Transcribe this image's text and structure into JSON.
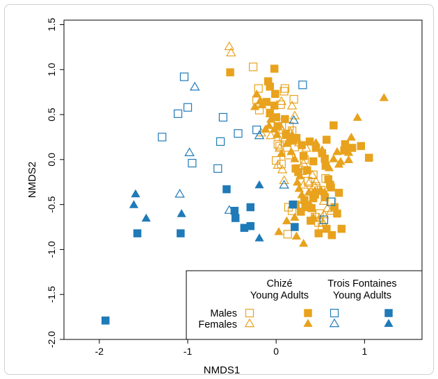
{
  "chart_data": {
    "type": "scatter",
    "xlabel": "NMDS1",
    "ylabel": "NMDS2",
    "xlim": [
      -2.4,
      1.65
    ],
    "ylim": [
      -2.0,
      1.55
    ],
    "x_ticks": [
      "-2",
      "-1",
      "0",
      "1"
    ],
    "x_tick_values": [
      -2,
      -1,
      0,
      1
    ],
    "y_ticks": [
      "-2.0",
      "-1.5",
      "-1.0",
      "-0.5",
      "0.0",
      "0.5",
      "1.0",
      "1.5"
    ],
    "y_tick_values": [
      -2.0,
      -1.5,
      -1.0,
      -0.5,
      0.0,
      0.5,
      1.0,
      1.5
    ],
    "grid": false,
    "legend_placement": "bottom-right",
    "colors": {
      "chize": "#e8a21d",
      "trois_fontaines": "#1f7ab8"
    },
    "legend": {
      "col1_header": "Chizé",
      "col2_header": "Trois Fontaines",
      "subheader": "Young Adults",
      "row_males": "Males",
      "row_females": "Females"
    },
    "series": [
      {
        "group": "Chizé",
        "age": "Young",
        "sex": "Males",
        "color": "#e8a21d",
        "marker": "square-open",
        "points": [
          [
            -0.26,
            1.03
          ],
          [
            0.1,
            0.79
          ],
          [
            0.09,
            0.76
          ],
          [
            -0.2,
            0.79
          ],
          [
            -0.22,
            0.66
          ],
          [
            -0.19,
            0.55
          ],
          [
            0.2,
            0.67
          ],
          [
            0.05,
            0.61
          ],
          [
            0.02,
            0.41
          ],
          [
            0.08,
            0.25
          ],
          [
            0.1,
            0.19
          ],
          [
            0.04,
            0.15
          ],
          [
            0.02,
            0.17
          ],
          [
            0.0,
            -0.01
          ],
          [
            0.06,
            -0.05
          ],
          [
            0.14,
            0.05
          ],
          [
            0.25,
            -0.1
          ],
          [
            0.36,
            -0.24
          ],
          [
            0.45,
            -0.3
          ],
          [
            0.51,
            -0.34
          ],
          [
            0.63,
            -0.47
          ],
          [
            0.49,
            -0.6
          ],
          [
            0.54,
            -0.67
          ],
          [
            0.52,
            -0.75
          ],
          [
            0.14,
            -0.53
          ],
          [
            0.18,
            -0.57
          ],
          [
            0.44,
            -0.64
          ],
          [
            0.48,
            -0.7
          ],
          [
            0.13,
            -0.83
          ],
          [
            0.56,
            -0.21
          ],
          [
            0.42,
            -0.17
          ],
          [
            0.32,
            0.0
          ],
          [
            0.15,
            0.37
          ],
          [
            0.18,
            0.32
          ],
          [
            0.21,
            0.14
          ]
        ]
      },
      {
        "group": "Chizé",
        "age": "Young",
        "sex": "Females",
        "color": "#e8a21d",
        "marker": "triangle-open",
        "points": [
          [
            -0.53,
            1.25
          ],
          [
            -0.51,
            1.18
          ],
          [
            0.04,
            0.36
          ],
          [
            0.07,
            0.32
          ],
          [
            -0.17,
            0.29
          ],
          [
            -0.06,
            0.26
          ],
          [
            0.16,
            0.3
          ],
          [
            0.04,
            0.12
          ],
          [
            0.07,
            -0.12
          ],
          [
            0.09,
            -0.24
          ],
          [
            0.31,
            -0.29
          ],
          [
            0.41,
            -0.18
          ],
          [
            0.43,
            -0.3
          ],
          [
            0.5,
            -0.36
          ],
          [
            0.54,
            -0.47
          ],
          [
            0.58,
            -0.55
          ],
          [
            0.62,
            -0.58
          ],
          [
            0.54,
            -0.62
          ],
          [
            0.45,
            -0.25
          ],
          [
            0.37,
            -0.27
          ],
          [
            0.29,
            -0.14
          ],
          [
            0.02,
            -0.07
          ],
          [
            0.49,
            -0.66
          ],
          [
            0.21,
            0.48
          ],
          [
            0.06,
            0.64
          ],
          [
            0.18,
            0.59
          ],
          [
            0.53,
            -0.71
          ],
          [
            0.34,
            0.12
          ],
          [
            0.26,
            0.18
          ],
          [
            0.31,
            -0.05
          ]
        ]
      },
      {
        "group": "Chizé",
        "age": "Adults",
        "sex": "Males",
        "color": "#e8a21d",
        "marker": "square-filled",
        "points": [
          [
            -0.52,
            0.97
          ],
          [
            -0.02,
            1.01
          ],
          [
            -0.09,
            0.87
          ],
          [
            -0.07,
            0.81
          ],
          [
            -0.01,
            0.73
          ],
          [
            -0.11,
            0.64
          ],
          [
            -0.02,
            0.6
          ],
          [
            -0.07,
            0.52
          ],
          [
            0.0,
            0.47
          ],
          [
            0.1,
            0.45
          ],
          [
            0.02,
            0.37
          ],
          [
            0.11,
            0.28
          ],
          [
            0.19,
            0.21
          ],
          [
            0.23,
            0.24
          ],
          [
            0.29,
            0.16
          ],
          [
            0.38,
            0.2
          ],
          [
            0.45,
            0.13
          ],
          [
            0.52,
            0.07
          ],
          [
            0.57,
            0.22
          ],
          [
            0.65,
            0.38
          ],
          [
            0.78,
            0.17
          ],
          [
            0.77,
            0.1
          ],
          [
            0.86,
            0.13
          ],
          [
            0.96,
            0.15
          ],
          [
            1.05,
            0.02
          ],
          [
            0.31,
            0.04
          ],
          [
            0.22,
            -0.1
          ],
          [
            0.25,
            -0.14
          ],
          [
            0.35,
            -0.12
          ],
          [
            0.42,
            -0.02
          ],
          [
            0.55,
            0.01
          ],
          [
            0.56,
            -0.07
          ],
          [
            0.59,
            -0.22
          ],
          [
            0.61,
            -0.28
          ],
          [
            0.62,
            -0.31
          ],
          [
            0.71,
            -0.37
          ],
          [
            0.55,
            -0.42
          ],
          [
            0.44,
            -0.39
          ],
          [
            0.42,
            -0.43
          ],
          [
            0.4,
            -0.54
          ],
          [
            0.33,
            -0.53
          ],
          [
            0.28,
            -0.58
          ],
          [
            0.22,
            -0.5
          ],
          [
            0.32,
            -0.45
          ],
          [
            0.39,
            -0.68
          ],
          [
            0.57,
            -0.77
          ],
          [
            0.74,
            -0.77
          ],
          [
            0.63,
            -0.84
          ],
          [
            0.48,
            -0.82
          ],
          [
            0.66,
            -0.53
          ],
          [
            0.69,
            -0.6
          ]
        ]
      },
      {
        "group": "Chizé",
        "age": "Adults",
        "sex": "Females",
        "color": "#e8a21d",
        "marker": "triangle-filled",
        "points": [
          [
            -0.22,
            0.72
          ],
          [
            -0.18,
            0.65
          ],
          [
            -0.16,
            0.6
          ],
          [
            -0.24,
            0.58
          ],
          [
            -0.07,
            0.5
          ],
          [
            -0.06,
            0.44
          ],
          [
            -0.08,
            0.37
          ],
          [
            -0.12,
            0.33
          ],
          [
            -0.02,
            0.33
          ],
          [
            0.01,
            0.27
          ],
          [
            0.15,
            0.22
          ],
          [
            0.18,
            0.27
          ],
          [
            0.12,
            0.17
          ],
          [
            0.06,
            0.06
          ],
          [
            0.17,
            0.08
          ],
          [
            0.21,
            0.0
          ],
          [
            0.35,
            -0.13
          ],
          [
            0.27,
            -0.19
          ],
          [
            0.24,
            -0.26
          ],
          [
            0.26,
            -0.33
          ],
          [
            0.37,
            -0.37
          ],
          [
            0.38,
            -0.5
          ],
          [
            0.29,
            -0.4
          ],
          [
            0.31,
            -0.46
          ],
          [
            0.41,
            -0.55
          ],
          [
            0.44,
            -0.35
          ],
          [
            0.51,
            -0.35
          ],
          [
            0.55,
            -0.37
          ],
          [
            0.42,
            -0.65
          ],
          [
            0.31,
            -0.94
          ],
          [
            0.23,
            -0.86
          ],
          [
            0.12,
            -0.69
          ],
          [
            0.03,
            -0.81
          ],
          [
            0.21,
            -0.65
          ],
          [
            0.73,
            -0.03
          ],
          [
            0.69,
            0.08
          ],
          [
            0.71,
            -0.06
          ],
          [
            0.82,
            0.07
          ],
          [
            0.85,
            0.24
          ],
          [
            0.92,
            0.46
          ],
          [
            1.22,
            0.68
          ],
          [
            0.45,
            0.18
          ],
          [
            0.52,
            0.1
          ],
          [
            0.6,
            -0.1
          ],
          [
            0.65,
            0.0
          ],
          [
            0.82,
            -0.01
          ]
        ]
      },
      {
        "group": "Trois Fontaines",
        "age": "Young",
        "sex": "Males",
        "color": "#1f7ab8",
        "marker": "square-open",
        "points": [
          [
            -1.04,
            0.92
          ],
          [
            -1.11,
            0.51
          ],
          [
            -1.0,
            0.58
          ],
          [
            -1.29,
            0.25
          ],
          [
            -0.95,
            -0.04
          ],
          [
            -0.6,
            0.47
          ],
          [
            -0.43,
            0.29
          ],
          [
            -0.63,
            0.2
          ],
          [
            -0.22,
            0.33
          ],
          [
            -0.66,
            -0.1
          ],
          [
            0.3,
            0.83
          ],
          [
            0.62,
            -0.47
          ],
          [
            0.54,
            -0.67
          ]
        ]
      },
      {
        "group": "Trois Fontaines",
        "age": "Young",
        "sex": "Females",
        "color": "#1f7ab8",
        "marker": "triangle-open",
        "points": [
          [
            -0.92,
            0.8
          ],
          [
            -0.98,
            0.07
          ],
          [
            -1.09,
            -0.39
          ],
          [
            -0.53,
            -0.57
          ],
          [
            -0.19,
            0.26
          ],
          [
            0.2,
            0.43
          ],
          [
            0.09,
            -0.29
          ]
        ]
      },
      {
        "group": "Trois Fontaines",
        "age": "Adults",
        "sex": "Males",
        "color": "#1f7ab8",
        "marker": "square-filled",
        "points": [
          [
            -1.57,
            -0.82
          ],
          [
            -1.08,
            -0.82
          ],
          [
            -0.56,
            -0.33
          ],
          [
            -0.47,
            -0.57
          ],
          [
            -0.46,
            -0.65
          ],
          [
            -0.36,
            -0.76
          ],
          [
            -0.29,
            -0.53
          ],
          [
            -0.29,
            -0.74
          ],
          [
            0.19,
            -0.5
          ],
          [
            0.21,
            -0.75
          ],
          [
            -1.93,
            -1.79
          ]
        ]
      },
      {
        "group": "Trois Fontaines",
        "age": "Adults",
        "sex": "Females",
        "color": "#1f7ab8",
        "marker": "triangle-filled",
        "points": [
          [
            -1.59,
            -0.39
          ],
          [
            -1.61,
            -0.51
          ],
          [
            -1.47,
            -0.66
          ],
          [
            -1.07,
            -0.61
          ],
          [
            -0.19,
            -0.29
          ],
          [
            -0.19,
            -0.88
          ]
        ]
      }
    ]
  }
}
